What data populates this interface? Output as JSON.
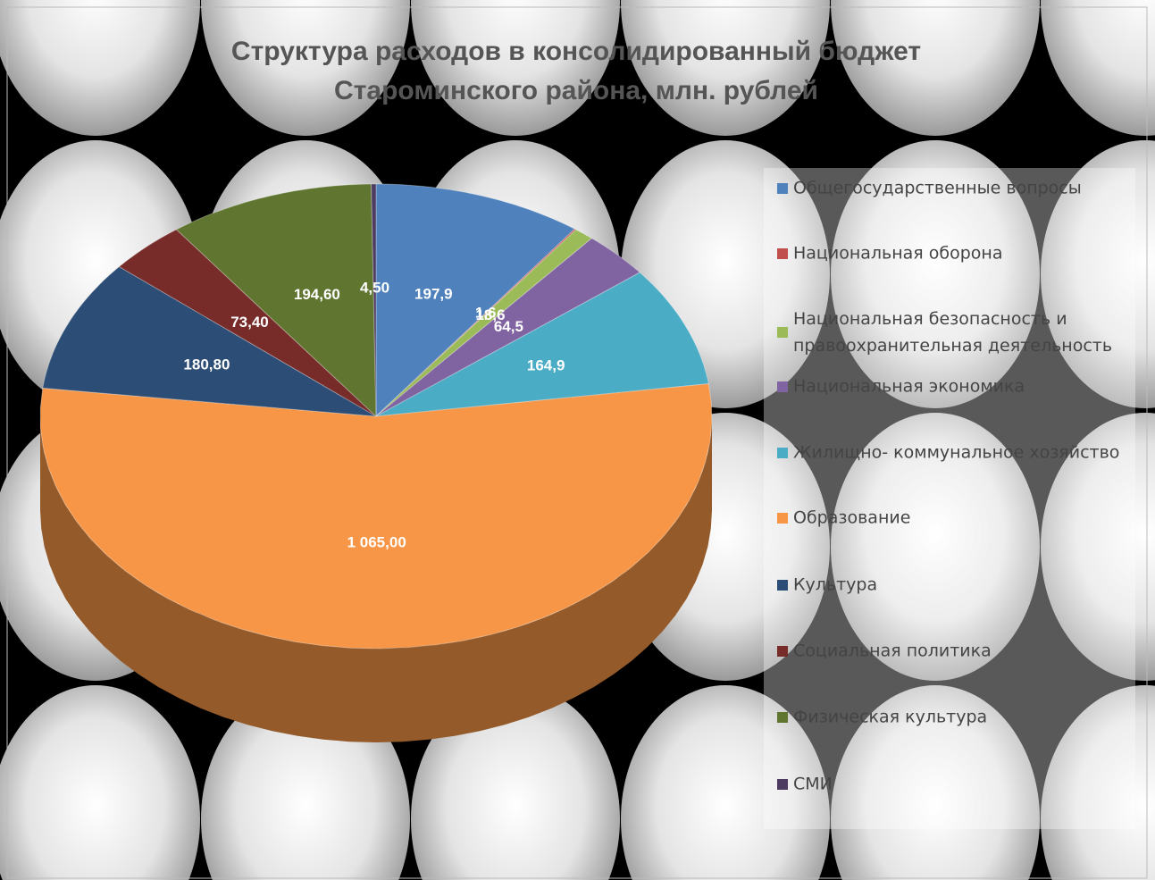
{
  "chart_data": {
    "type": "pie3d",
    "title": "Структура расходов в консолидированный бюджет Староминского района, млн. рублей",
    "categories": [
      "Общегосударственные вопросы",
      "Национальная оборона",
      "Национальная безопасность и правоохранительная деятельность",
      "Национальная экономика",
      "Жилищно- коммунальное хозяйство",
      "Образование",
      "Культура",
      "Социальная политика",
      "Физическая культура",
      "СМИ"
    ],
    "values": [
      197.9,
      1.6,
      18.6,
      64.5,
      164.9,
      1065,
      180.8,
      73.4,
      194.6,
      4.5
    ],
    "value_labels": [
      "197,9",
      "1,6",
      "18,6",
      "64,5",
      "164,9",
      "1 065,00",
      "180,80",
      "73,40",
      "194,60",
      "4,50"
    ],
    "colors": [
      "#4f81bd",
      "#c0504d",
      "#9bbb59",
      "#8064a2",
      "#4bacc6",
      "#f79646",
      "#2c4d75",
      "#772c2a",
      "#5f7530",
      "#4d3b62"
    ],
    "legend": "right"
  }
}
